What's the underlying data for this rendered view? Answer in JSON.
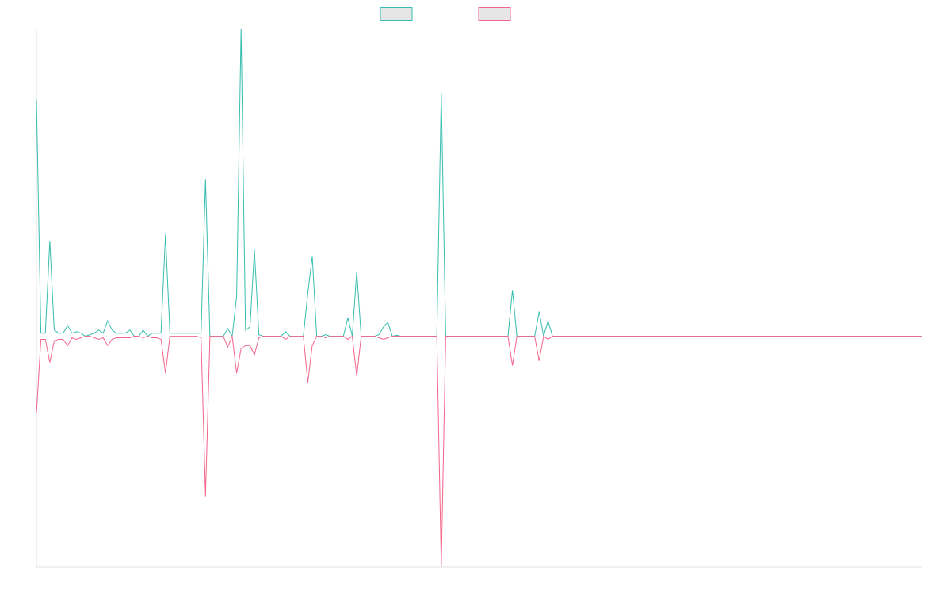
{
  "chart_data": {
    "type": "line",
    "categories": [
      null,
      null,
      null,
      null,
      null,
      null,
      null,
      null,
      null,
      null,
      null,
      null,
      null,
      null,
      null,
      null,
      null,
      null,
      null,
      null,
      null,
      null,
      null,
      null,
      null,
      null,
      null,
      null,
      null,
      null,
      null,
      null,
      null,
      null,
      null,
      null,
      null,
      null,
      null,
      null,
      null,
      null,
      null,
      null,
      null,
      null,
      null,
      null,
      null,
      null,
      null,
      null,
      null,
      null,
      null,
      null,
      null,
      null,
      null,
      null,
      null,
      null,
      null,
      null,
      null,
      null,
      null,
      null,
      null,
      null,
      null,
      null,
      null,
      null,
      null,
      null,
      null,
      null,
      null,
      null,
      null,
      null,
      null,
      null,
      null,
      null,
      null,
      null,
      null,
      null,
      null,
      null,
      null,
      null,
      null,
      null,
      null,
      null,
      null,
      null,
      null,
      null,
      null,
      null,
      null,
      null,
      null,
      null,
      null,
      null,
      null,
      null,
      null,
      null,
      null,
      null,
      null,
      null,
      null,
      null,
      null,
      null,
      null,
      null,
      null,
      null,
      null,
      null,
      null,
      null,
      null,
      null,
      null,
      null,
      null,
      null,
      null,
      null,
      null,
      null,
      null,
      null,
      null,
      null,
      null,
      null,
      null,
      null,
      null,
      null,
      null,
      null,
      null,
      null,
      null,
      null,
      null,
      null,
      null,
      null,
      null,
      null,
      null,
      null,
      null,
      null,
      null,
      null,
      null,
      null,
      null,
      null,
      null,
      null,
      null,
      null,
      null,
      null,
      null,
      null,
      null,
      null,
      null,
      null,
      null,
      null,
      null,
      null,
      null,
      null,
      null,
      null,
      null,
      null,
      null,
      null,
      null,
      null,
      null,
      null
    ],
    "series": [
      {
        "color": "#36bdae",
        "values": [
          0.77,
          0.01,
          0.01,
          0.31,
          0.02,
          0.01,
          0.01,
          0.035,
          0.01,
          0.015,
          0.01,
          0,
          0.005,
          0.01,
          0.02,
          0.01,
          0.05,
          0.02,
          0.01,
          0.01,
          0.01,
          0.02,
          0,
          0,
          0.02,
          0,
          0.01,
          0.01,
          0.01,
          0.33,
          0.01,
          0.01,
          0.01,
          0.01,
          0.01,
          0.01,
          0.01,
          0.01,
          0.51,
          0,
          0,
          0,
          0,
          0.025,
          0,
          0.13,
          1,
          0.02,
          0.03,
          0.28,
          0.005,
          0,
          0,
          0,
          0,
          0,
          0.015,
          0,
          0,
          0,
          0,
          0.14,
          0.26,
          0,
          0,
          0.005,
          0,
          0,
          0,
          0,
          0.06,
          0,
          0.21,
          0,
          0,
          0,
          0,
          0.005,
          0.03,
          0.045,
          0,
          0.003,
          0,
          0,
          0,
          0,
          0,
          0,
          0,
          0,
          0,
          0.79,
          0,
          0,
          0,
          0,
          0,
          0,
          0,
          0,
          0,
          0,
          0,
          0,
          0,
          0,
          0,
          0.15,
          0,
          0,
          0,
          0,
          0,
          0.08,
          0,
          0.05,
          0,
          0,
          0,
          0,
          0,
          0,
          0,
          0,
          0,
          0,
          0,
          0,
          0,
          0,
          0,
          0,
          0,
          0,
          0,
          0,
          0,
          0,
          0,
          0,
          0,
          0,
          0,
          0,
          0,
          0,
          0,
          0,
          0,
          0,
          0,
          0,
          0,
          0,
          0,
          0,
          0,
          0,
          0,
          0,
          0,
          0,
          0,
          0,
          0,
          0,
          0,
          0,
          0,
          0,
          0,
          0,
          0,
          0,
          0,
          0,
          0,
          0,
          0,
          0,
          0,
          0,
          0,
          0,
          0,
          0,
          0,
          0,
          0,
          0,
          0,
          0,
          0,
          0,
          0,
          0,
          0,
          0,
          0,
          0
        ]
      },
      {
        "color": "#f2648a",
        "values": [
          -0.25,
          -0.01,
          -0.01,
          -0.085,
          -0.015,
          -0.01,
          -0.01,
          -0.03,
          -0.005,
          -0.01,
          -0.005,
          0,
          0,
          -0.005,
          -0.01,
          -0.005,
          -0.03,
          -0.01,
          -0.005,
          -0.005,
          -0.005,
          -0.005,
          0,
          0,
          -0.005,
          0,
          -0.005,
          -0.005,
          -0.01,
          -0.12,
          0,
          0,
          0,
          0,
          0,
          0,
          0,
          -0.005,
          -0.52,
          0,
          0,
          0,
          0,
          -0.035,
          0,
          -0.12,
          -0.04,
          -0.03,
          -0.03,
          -0.06,
          -0.005,
          0,
          0,
          0,
          0,
          0,
          -0.01,
          0,
          0,
          0,
          0,
          -0.15,
          -0.03,
          0,
          0,
          -0.005,
          0,
          0,
          0,
          0,
          -0.01,
          0,
          -0.13,
          0,
          0,
          0,
          0,
          -0.005,
          -0.01,
          -0.005,
          0,
          0,
          0,
          0,
          0,
          0,
          0,
          0,
          0,
          0,
          0,
          -0.75,
          0,
          0,
          0,
          0,
          0,
          0,
          0,
          0,
          0,
          0,
          0,
          0,
          0,
          0,
          0,
          -0.095,
          0,
          0,
          0,
          0,
          0,
          -0.08,
          0,
          -0.01,
          0,
          0,
          0,
          0,
          0,
          0,
          0,
          0,
          0,
          0,
          0,
          0,
          0,
          0,
          0,
          0,
          0,
          0,
          0,
          0,
          0,
          0,
          0,
          0,
          0,
          0,
          0,
          0,
          0,
          0,
          0,
          0,
          0,
          0,
          0,
          0,
          0,
          0,
          0,
          0,
          0,
          0,
          0,
          0,
          0,
          0,
          0,
          0,
          0,
          0,
          0,
          0,
          0,
          0,
          0,
          0,
          0,
          0,
          0,
          0,
          0,
          0,
          0,
          0,
          0,
          0,
          0,
          0,
          0,
          0,
          0,
          0,
          0,
          0,
          0,
          0,
          0,
          0,
          0,
          0,
          0,
          0,
          0,
          0
        ]
      }
    ],
    "ylim": [
      -0.75,
      1
    ]
  }
}
